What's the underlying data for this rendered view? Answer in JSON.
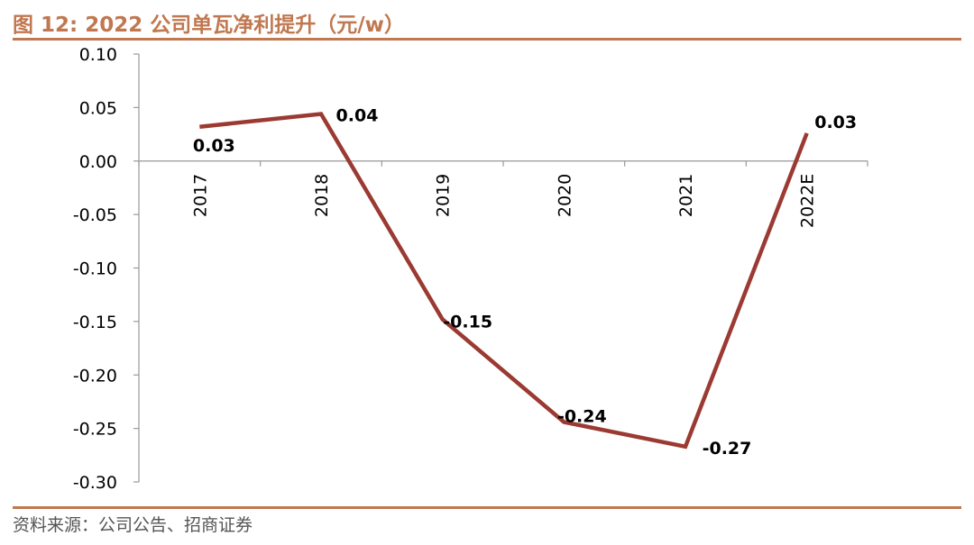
{
  "page": {
    "title": "图 12:  2022 公司单瓦净利提升（元/w）",
    "source": "资料来源：公司公告、招商证券"
  },
  "colors": {
    "accent": "#c07850",
    "series": "#9b3a32",
    "axis": "#999999",
    "text": "#000000"
  },
  "chart_data": {
    "type": "line",
    "title": "",
    "xlabel": "",
    "ylabel": "",
    "categories": [
      "2017",
      "2018",
      "2019",
      "2020",
      "2021",
      "2022E"
    ],
    "series": [
      {
        "values": [
          0.032,
          0.044,
          -0.148,
          -0.244,
          -0.267,
          0.026
        ],
        "labels": [
          "0.03",
          "0.04",
          "-0.15",
          "-0.24",
          "-0.27",
          "0.03"
        ]
      }
    ],
    "ylim": [
      -0.3,
      0.1
    ],
    "yticks": [
      0.1,
      0.05,
      0.0,
      -0.05,
      -0.1,
      -0.15,
      -0.2,
      -0.25,
      -0.3
    ],
    "ytick_labels": [
      "0.10",
      "0.05",
      "0.00",
      "-0.05",
      "-0.10",
      "-0.15",
      "-0.20",
      "-0.25",
      "-0.30"
    ],
    "grid": false,
    "legend": "none"
  }
}
